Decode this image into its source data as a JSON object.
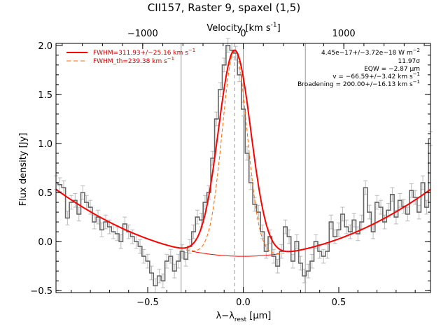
{
  "chart_data": {
    "type": "line",
    "title": "CII157, Raster 9, spaxel (1,5)",
    "xlabel": "λ−λ",
    "xlabel_sub": "rest",
    "xlabel_unit": " [μm]",
    "ylabel": "Flux density [Jy]",
    "top_xlabel": "Velocity [km s",
    "top_xlabel_sup": "-1",
    "top_xlabel_end": "]",
    "xlim": [
      -0.98,
      0.98
    ],
    "ylim": [
      -0.52,
      2.02
    ],
    "x_ticks": [
      -0.5,
      0.0,
      0.5
    ],
    "x_tick_labels": [
      "−0.5",
      "0.0",
      "0.5"
    ],
    "y_ticks": [
      -0.5,
      0.0,
      0.5,
      1.0,
      1.5,
      2.0
    ],
    "y_tick_labels": [
      "−0.5",
      "0.0",
      "0.5",
      "1.0",
      "1.5",
      "2.0"
    ],
    "top_ticks_velocity": [
      -1000,
      0,
      1000
    ],
    "top_tick_labels": [
      "−1000",
      "0",
      "1000"
    ],
    "vertical_lines_x": [
      -0.325,
      0.325
    ],
    "velocity_per_micron": 1900,
    "legend": [
      {
        "label": "FWHM=311.93+/−25.16 km s",
        "sup": "−1",
        "style": "solid",
        "color": "#ff0000"
      },
      {
        "label": "FWHM_th=239.38 km s",
        "sup": "−1",
        "style": "dashed",
        "color": "#ff6600"
      }
    ],
    "annotations": [
      {
        "text": "4.45e−17+/−3.72e−18 W m",
        "sup": "−2"
      },
      {
        "text": "11.97σ",
        "sup": ""
      },
      {
        "text": "EQW = −2.87 μm",
        "sup": ""
      },
      {
        "text": "v = −66.59+/−3.42 km s",
        "sup": "−1"
      },
      {
        "text": "Broadening = 200.00+/−16.13 km s",
        "sup": "−1"
      }
    ],
    "spectrum_x": [
      -0.98,
      -0.96,
      -0.94,
      -0.92,
      -0.9,
      -0.88,
      -0.86,
      -0.84,
      -0.82,
      -0.8,
      -0.78,
      -0.76,
      -0.74,
      -0.72,
      -0.7,
      -0.68,
      -0.66,
      -0.64,
      -0.62,
      -0.6,
      -0.58,
      -0.56,
      -0.54,
      -0.52,
      -0.5,
      -0.48,
      -0.46,
      -0.44,
      -0.42,
      -0.4,
      -0.38,
      -0.36,
      -0.34,
      -0.32,
      -0.3,
      -0.28,
      -0.26,
      -0.24,
      -0.22,
      -0.2,
      -0.18,
      -0.16,
      -0.14,
      -0.12,
      -0.1,
      -0.08,
      -0.06,
      -0.04,
      -0.02,
      0.0,
      0.02,
      0.04,
      0.06,
      0.08,
      0.1,
      0.12,
      0.14,
      0.16,
      0.18,
      0.2,
      0.22,
      0.24,
      0.26,
      0.28,
      0.3,
      0.32,
      0.34,
      0.36,
      0.38,
      0.4,
      0.42,
      0.44,
      0.46,
      0.48,
      0.5,
      0.52,
      0.54,
      0.56,
      0.58,
      0.6,
      0.62,
      0.64,
      0.66,
      0.68,
      0.7,
      0.72,
      0.74,
      0.76,
      0.78,
      0.8,
      0.82,
      0.84,
      0.86,
      0.88,
      0.9,
      0.92,
      0.94,
      0.96,
      0.98
    ],
    "spectrum_y": [
      0.6,
      0.58,
      0.55,
      0.24,
      0.4,
      0.42,
      0.28,
      0.5,
      0.4,
      0.35,
      0.2,
      0.25,
      0.12,
      0.2,
      0.15,
      0.1,
      0.08,
      0.0,
      0.18,
      0.1,
      0.05,
      0.0,
      -0.05,
      -0.15,
      -0.2,
      -0.32,
      -0.45,
      -0.35,
      -0.4,
      -0.2,
      -0.15,
      -0.3,
      -0.2,
      -0.1,
      -0.18,
      -0.05,
      0.1,
      0.25,
      0.22,
      0.4,
      0.5,
      0.85,
      1.25,
      1.55,
      1.8,
      2.0,
      1.95,
      1.92,
      1.7,
      1.35,
      0.9,
      0.6,
      0.38,
      0.3,
      0.1,
      -0.1,
      0.05,
      -0.15,
      -0.25,
      -0.1,
      0.15,
      0.05,
      -0.2,
      0.0,
      -0.22,
      -0.35,
      -0.3,
      -0.2,
      0.0,
      -0.1,
      -0.15,
      -0.1,
      0.2,
      0.05,
      0.12,
      0.28,
      0.15,
      0.1,
      0.22,
      0.08,
      0.2,
      0.55,
      0.3,
      0.1,
      0.4,
      0.35,
      0.2,
      0.32,
      0.48,
      0.25,
      0.42,
      0.36,
      0.28,
      0.52,
      0.45,
      0.3,
      0.6,
      0.35,
      1.05
    ],
    "error_bar": 0.07,
    "fit": {
      "center": -0.045,
      "amplitude": 2.1,
      "sigma": 0.085,
      "baseline_a": 0.62,
      "baseline_b": -0.15,
      "baseline_c": 0.71,
      "thermal_sigma": 0.065
    }
  }
}
